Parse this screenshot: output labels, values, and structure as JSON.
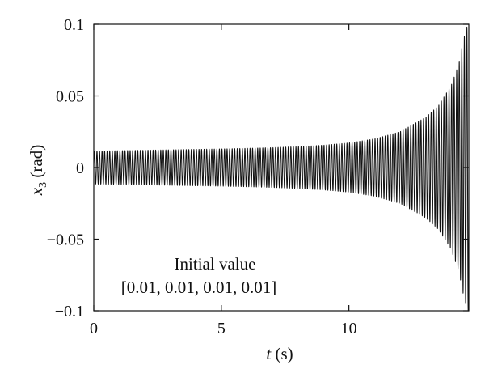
{
  "chart_data": {
    "type": "line",
    "title": "",
    "xlabel": {
      "var": "t",
      "unit": " (s)"
    },
    "ylabel": {
      "var": "x",
      "sub": "3",
      "unit": " (rad)"
    },
    "xlim": [
      0,
      14.7
    ],
    "ylim": [
      -0.1,
      0.1
    ],
    "xticks": [
      0,
      5,
      10
    ],
    "xtick_labels": [
      "0",
      "5",
      "10"
    ],
    "yticks": [
      0.1,
      0.05,
      0,
      -0.05,
      -0.1
    ],
    "ytick_labels": [
      "0.1",
      "0.05",
      "0",
      "−0.05",
      "−0.1"
    ],
    "grid": false,
    "legend": "none",
    "line_color": "#111111",
    "series": [
      {
        "signal": "oscillation",
        "frequency_hz": 10,
        "envelope": [
          [
            0,
            0.0115
          ],
          [
            1,
            0.0118
          ],
          [
            2,
            0.0121
          ],
          [
            3,
            0.0124
          ],
          [
            4,
            0.0127
          ],
          [
            5,
            0.013
          ],
          [
            6,
            0.0134
          ],
          [
            7,
            0.0139
          ],
          [
            8,
            0.0146
          ],
          [
            9,
            0.0156
          ],
          [
            10,
            0.0172
          ],
          [
            11,
            0.02
          ],
          [
            12,
            0.025
          ],
          [
            13,
            0.035
          ],
          [
            13.5,
            0.043
          ],
          [
            14,
            0.057
          ],
          [
            14.3,
            0.072
          ],
          [
            14.5,
            0.09
          ],
          [
            14.65,
            0.1
          ]
        ]
      }
    ],
    "annotations": [
      {
        "text": "Initial value"
      },
      {
        "text": "[0.01, 0.01, 0.01, 0.01]"
      }
    ]
  }
}
